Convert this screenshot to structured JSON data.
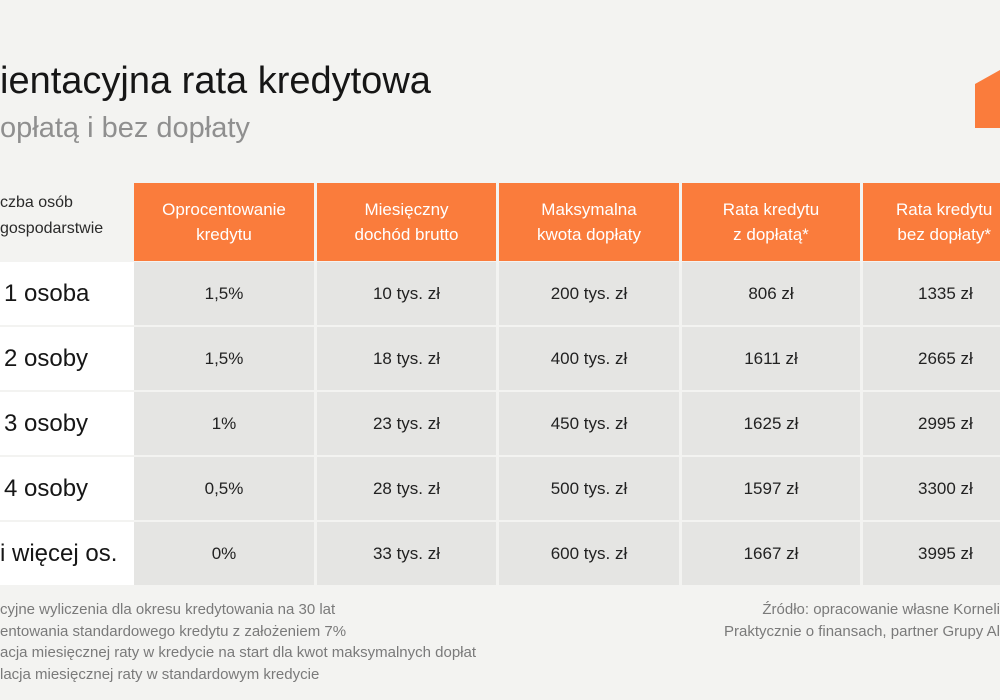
{
  "title": "ientacyjna rata kredytowa",
  "subtitle": "opłatą i bez dopłaty",
  "accent_color": "#fa7c3c",
  "row_header_label": [
    "czba osób",
    "gospodarstwie"
  ],
  "columns": [
    "Oprocentowanie\nkredytu",
    "Miesięczny\ndochód brutto",
    "Maksymalna\nkwota dopłaty",
    "Rata kredytu\nz dopłatą*",
    "Rata kredytu\nbez dopłaty*"
  ],
  "rows": [
    {
      "label": "1 osoba",
      "cells": [
        "1,5%",
        "10 tys. zł",
        "200 tys. zł",
        "806 zł",
        "1335 zł"
      ]
    },
    {
      "label": "2 osoby",
      "cells": [
        "1,5%",
        "18 tys. zł",
        "400 tys. zł",
        "1611 zł",
        "2665 zł"
      ]
    },
    {
      "label": "3 osoby",
      "cells": [
        "1%",
        "23 tys. zł",
        "450 tys. zł",
        "1625 zł",
        "2995 zł"
      ]
    },
    {
      "label": "4 osoby",
      "cells": [
        "0,5%",
        "28 tys. zł",
        "500 tys. zł",
        "1597 zł",
        "3300 zł"
      ]
    },
    {
      "label": "i więcej os.",
      "cells": [
        "0%",
        "33 tys. zł",
        "600 tys. zł",
        "1667 zł",
        "3995 zł"
      ]
    }
  ],
  "footnotes": [
    "cyjne wyliczenia dla okresu kredytowania na 30 lat",
    "entowania standardowego kredytu z założeniem 7%",
    "acja miesięcznej raty w kredycie na start dla kwot maksymalnych dopłat",
    "lacja miesięcznej raty w standardowym kredycie"
  ],
  "source": [
    "Źródło: opracowanie własne Korneli",
    "Praktycznie o finansach, partner Grupy Al"
  ]
}
